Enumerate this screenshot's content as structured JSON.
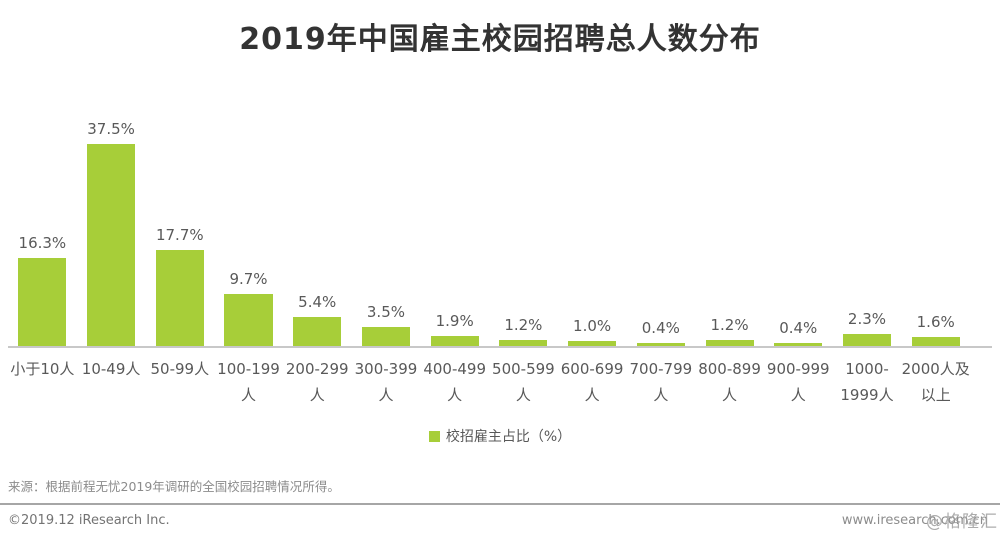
{
  "title": "2019年中国雇主校园招聘总人数分布",
  "colors": {
    "bar": "#a7ce39",
    "axis": "#c8c8c8",
    "value_label": "#595959",
    "tick_label": "#595959"
  },
  "chart_data": {
    "type": "bar",
    "title": "2019年中国雇主校园招聘总人数分布",
    "categories": [
      "小于10人",
      "10-49人",
      "50-99人",
      "100-199人",
      "200-299人",
      "300-399人",
      "400-499人",
      "500-599人",
      "600-699人",
      "700-799人",
      "800-899人",
      "900-999人",
      "1000-1999人",
      "2000人及以上"
    ],
    "tick_labels": [
      [
        "小于10人"
      ],
      [
        "10-49人"
      ],
      [
        "50-99人"
      ],
      [
        "100-199",
        "人"
      ],
      [
        "200-299",
        "人"
      ],
      [
        "300-399",
        "人"
      ],
      [
        "400-499",
        "人"
      ],
      [
        "500-599",
        "人"
      ],
      [
        "600-699",
        "人"
      ],
      [
        "700-799",
        "人"
      ],
      [
        "800-899",
        "人"
      ],
      [
        "900-999",
        "人"
      ],
      [
        "1000-",
        "1999人"
      ],
      [
        "2000人及",
        "以上"
      ]
    ],
    "values": [
      16.3,
      37.5,
      17.7,
      9.7,
      5.4,
      3.5,
      1.9,
      1.2,
      1.0,
      0.4,
      1.2,
      0.4,
      2.3,
      1.6
    ],
    "value_labels": [
      "16.3%",
      "37.5%",
      "17.7%",
      "9.7%",
      "5.4%",
      "3.5%",
      "1.9%",
      "1.2%",
      "1.0%",
      "0.4%",
      "1.2%",
      "0.4%",
      "2.3%",
      "1.6%"
    ],
    "series_name": "校招雇主占比（%）",
    "xlabel": "",
    "ylabel": "校招雇主占比（%）",
    "ylim": [
      0,
      40
    ],
    "grid": false,
    "legend_position": "bottom"
  },
  "legend": {
    "label": "校招雇主占比（%）"
  },
  "footer": {
    "source": "来源：根据前程无忧2019年调研的全国校园招聘情况所得。",
    "copyright": "©2019.12 iResearch Inc.",
    "website": "www.iresearch.com.cn",
    "watermark": "@格隆汇"
  }
}
